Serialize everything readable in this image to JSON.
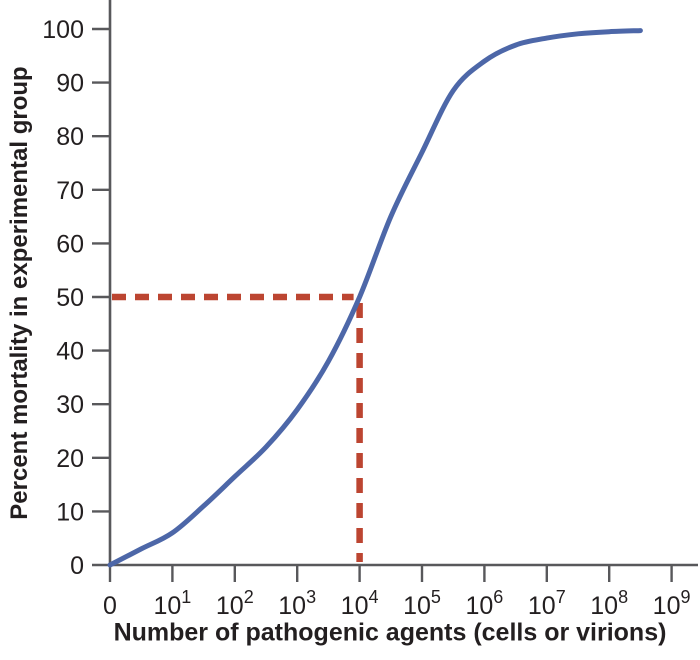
{
  "chart_data": {
    "type": "line",
    "title": "",
    "xlabel": "Number of pathogenic agents (cells or virions)",
    "ylabel": "Percent mortality in experimental group",
    "x_axis": {
      "scale": "log-decades",
      "tick_labels": [
        {
          "text": "0"
        },
        {
          "base": "10",
          "exp": "1"
        },
        {
          "base": "10",
          "exp": "2"
        },
        {
          "base": "10",
          "exp": "3"
        },
        {
          "base": "10",
          "exp": "4"
        },
        {
          "base": "10",
          "exp": "5"
        },
        {
          "base": "10",
          "exp": "6"
        },
        {
          "base": "10",
          "exp": "7"
        },
        {
          "base": "10",
          "exp": "8"
        },
        {
          "base": "10",
          "exp": "9"
        }
      ]
    },
    "y_axis": {
      "ticks": [
        0,
        10,
        20,
        30,
        40,
        50,
        60,
        70,
        80,
        90,
        100
      ],
      "range": [
        0,
        100
      ],
      "grid": false
    },
    "series": [
      {
        "name": "percent-mortality-curve",
        "color": "#4d67a8",
        "points_decade_pct": [
          [
            0,
            0
          ],
          [
            0.5,
            3
          ],
          [
            1,
            6
          ],
          [
            1.5,
            11
          ],
          [
            2,
            16.5
          ],
          [
            2.5,
            22
          ],
          [
            3,
            29
          ],
          [
            3.5,
            38
          ],
          [
            4,
            50
          ],
          [
            4.5,
            65
          ],
          [
            5,
            77
          ],
          [
            5.5,
            88.5
          ],
          [
            6,
            94
          ],
          [
            6.5,
            97
          ],
          [
            7,
            98.3
          ],
          [
            7.5,
            99.1
          ],
          [
            8,
            99.5
          ],
          [
            8.5,
            99.7
          ]
        ]
      }
    ],
    "annotations": [
      {
        "name": "ld50-guide",
        "type": "dashed-crosshair",
        "color": "#bc4531",
        "x_decade": 4,
        "x_value_label": "10^4",
        "y_pct": 50
      }
    ],
    "legend": "none",
    "colors": {
      "axis": "#58585b",
      "tick_text": "#231f20",
      "curve": "#4d67a8",
      "dashed": "#bc4531",
      "background": "#ffffff"
    }
  }
}
